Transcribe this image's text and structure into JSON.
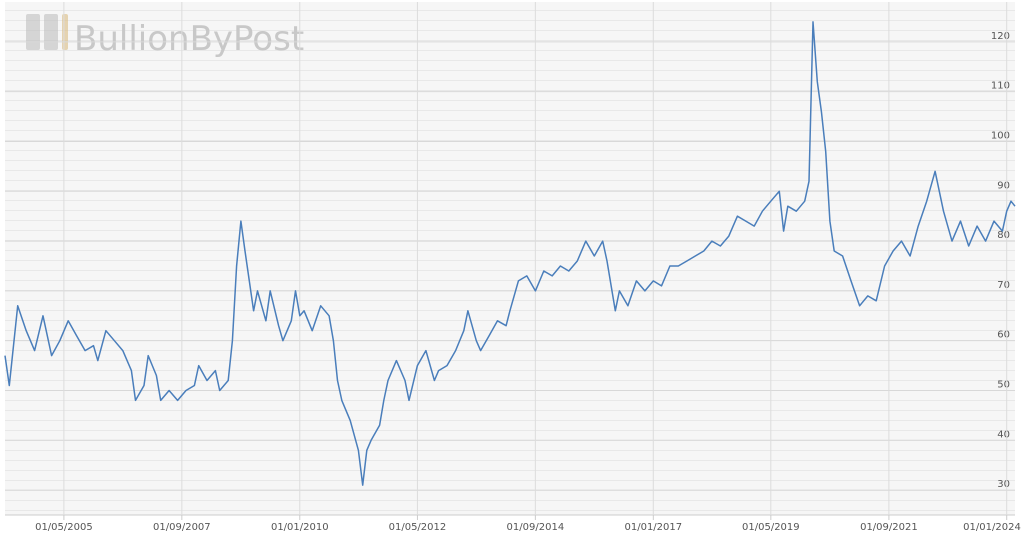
{
  "chart_data": {
    "type": "line",
    "watermark": "BullionByPost",
    "x": [
      "2004-03-01",
      "2004-04-01",
      "2004-06-01",
      "2004-08-01",
      "2004-10-01",
      "2004-12-01",
      "2005-02-01",
      "2005-04-01",
      "2005-06-01",
      "2005-08-01",
      "2005-10-01",
      "2005-12-01",
      "2006-01-01",
      "2006-03-01",
      "2006-05-01",
      "2006-07-01",
      "2006-09-01",
      "2006-10-01",
      "2006-12-01",
      "2007-01-01",
      "2007-03-01",
      "2007-04-01",
      "2007-06-01",
      "2007-08-01",
      "2007-10-01",
      "2007-12-01",
      "2008-01-01",
      "2008-03-01",
      "2008-05-01",
      "2008-06-01",
      "2008-08-01",
      "2008-09-01",
      "2008-10-01",
      "2008-11-01",
      "2008-12-01",
      "2009-01-01",
      "2009-02-01",
      "2009-03-01",
      "2009-05-01",
      "2009-06-01",
      "2009-08-01",
      "2009-09-01",
      "2009-11-01",
      "2009-12-01",
      "2010-01-01",
      "2010-02-01",
      "2010-04-01",
      "2010-06-01",
      "2010-08-01",
      "2010-09-01",
      "2010-10-01",
      "2010-11-01",
      "2010-12-01",
      "2011-01-01",
      "2011-03-01",
      "2011-04-01",
      "2011-05-01",
      "2011-06-01",
      "2011-08-01",
      "2011-09-01",
      "2011-10-01",
      "2011-12-01",
      "2012-02-01",
      "2012-03-01",
      "2012-05-01",
      "2012-07-01",
      "2012-09-01",
      "2012-10-01",
      "2012-12-01",
      "2013-02-01",
      "2013-04-01",
      "2013-05-01",
      "2013-07-01",
      "2013-08-01",
      "2013-10-01",
      "2013-12-01",
      "2014-02-01",
      "2014-03-01",
      "2014-05-01",
      "2014-07-01",
      "2014-09-01",
      "2014-11-01",
      "2015-01-01",
      "2015-03-01",
      "2015-05-01",
      "2015-07-01",
      "2015-09-01",
      "2015-11-01",
      "2016-01-01",
      "2016-02-01",
      "2016-04-01",
      "2016-05-01",
      "2016-07-01",
      "2016-09-01",
      "2016-11-01",
      "2017-01-01",
      "2017-03-01",
      "2017-05-01",
      "2017-07-01",
      "2017-09-01",
      "2017-11-01",
      "2018-01-01",
      "2018-03-01",
      "2018-05-01",
      "2018-07-01",
      "2018-09-01",
      "2018-11-01",
      "2019-01-01",
      "2019-03-01",
      "2019-05-01",
      "2019-07-01",
      "2019-08-01",
      "2019-09-01",
      "2019-11-01",
      "2020-01-01",
      "2020-02-01",
      "2020-03-01",
      "2020-04-01",
      "2020-05-01",
      "2020-06-01",
      "2020-07-01",
      "2020-08-01",
      "2020-10-01",
      "2020-12-01",
      "2021-02-01",
      "2021-04-01",
      "2021-06-01",
      "2021-08-01",
      "2021-10-01",
      "2021-12-01",
      "2022-02-01",
      "2022-04-01",
      "2022-06-01",
      "2022-08-01",
      "2022-10-01",
      "2022-12-01",
      "2023-02-01",
      "2023-04-01",
      "2023-06-01",
      "2023-08-01",
      "2023-10-01",
      "2023-12-01",
      "2024-01-01",
      "2024-02-01",
      "2024-03-01"
    ],
    "values": [
      57,
      51,
      67,
      62,
      58,
      65,
      57,
      60,
      64,
      61,
      58,
      59,
      56,
      62,
      60,
      58,
      54,
      48,
      51,
      57,
      53,
      48,
      50,
      48,
      50,
      51,
      55,
      52,
      54,
      50,
      52,
      60,
      75,
      84,
      78,
      72,
      66,
      70,
      64,
      70,
      63,
      60,
      64,
      70,
      65,
      66,
      62,
      67,
      65,
      60,
      52,
      48,
      46,
      44,
      38,
      31,
      38,
      40,
      43,
      48,
      52,
      56,
      52,
      48,
      55,
      58,
      52,
      54,
      55,
      58,
      62,
      66,
      60,
      58,
      61,
      64,
      63,
      66,
      72,
      73,
      70,
      74,
      73,
      75,
      74,
      76,
      80,
      77,
      80,
      76,
      66,
      70,
      67,
      72,
      70,
      72,
      71,
      75,
      75,
      76,
      77,
      78,
      80,
      79,
      81,
      85,
      84,
      83,
      86,
      88,
      90,
      82,
      87,
      86,
      88,
      92,
      124,
      112,
      106,
      98,
      84,
      78,
      77,
      72,
      67,
      69,
      68,
      75,
      78,
      80,
      77,
      83,
      88,
      94,
      86,
      80,
      84,
      79,
      83,
      80,
      84,
      82,
      86,
      88,
      87
    ],
    "color": "#4a7ebb",
    "xlim": [
      "2004-03-01",
      "2024-03-01"
    ],
    "xticks": [
      {
        "value": "2005-05-01",
        "label": "01/05/2005"
      },
      {
        "value": "2007-09-01",
        "label": "01/09/2007"
      },
      {
        "value": "2010-01-01",
        "label": "01/01/2010"
      },
      {
        "value": "2012-05-01",
        "label": "01/05/2012"
      },
      {
        "value": "2014-09-01",
        "label": "01/09/2014"
      },
      {
        "value": "2017-01-01",
        "label": "01/01/2017"
      },
      {
        "value": "2019-05-01",
        "label": "01/05/2019"
      },
      {
        "value": "2021-09-01",
        "label": "01/09/2021"
      },
      {
        "value": "2024-01-01",
        "label": "01/01/2024"
      }
    ],
    "ylim": [
      25,
      128
    ],
    "yticks": [
      30,
      40,
      50,
      60,
      70,
      80,
      90,
      100,
      110,
      120
    ],
    "grid": true
  }
}
